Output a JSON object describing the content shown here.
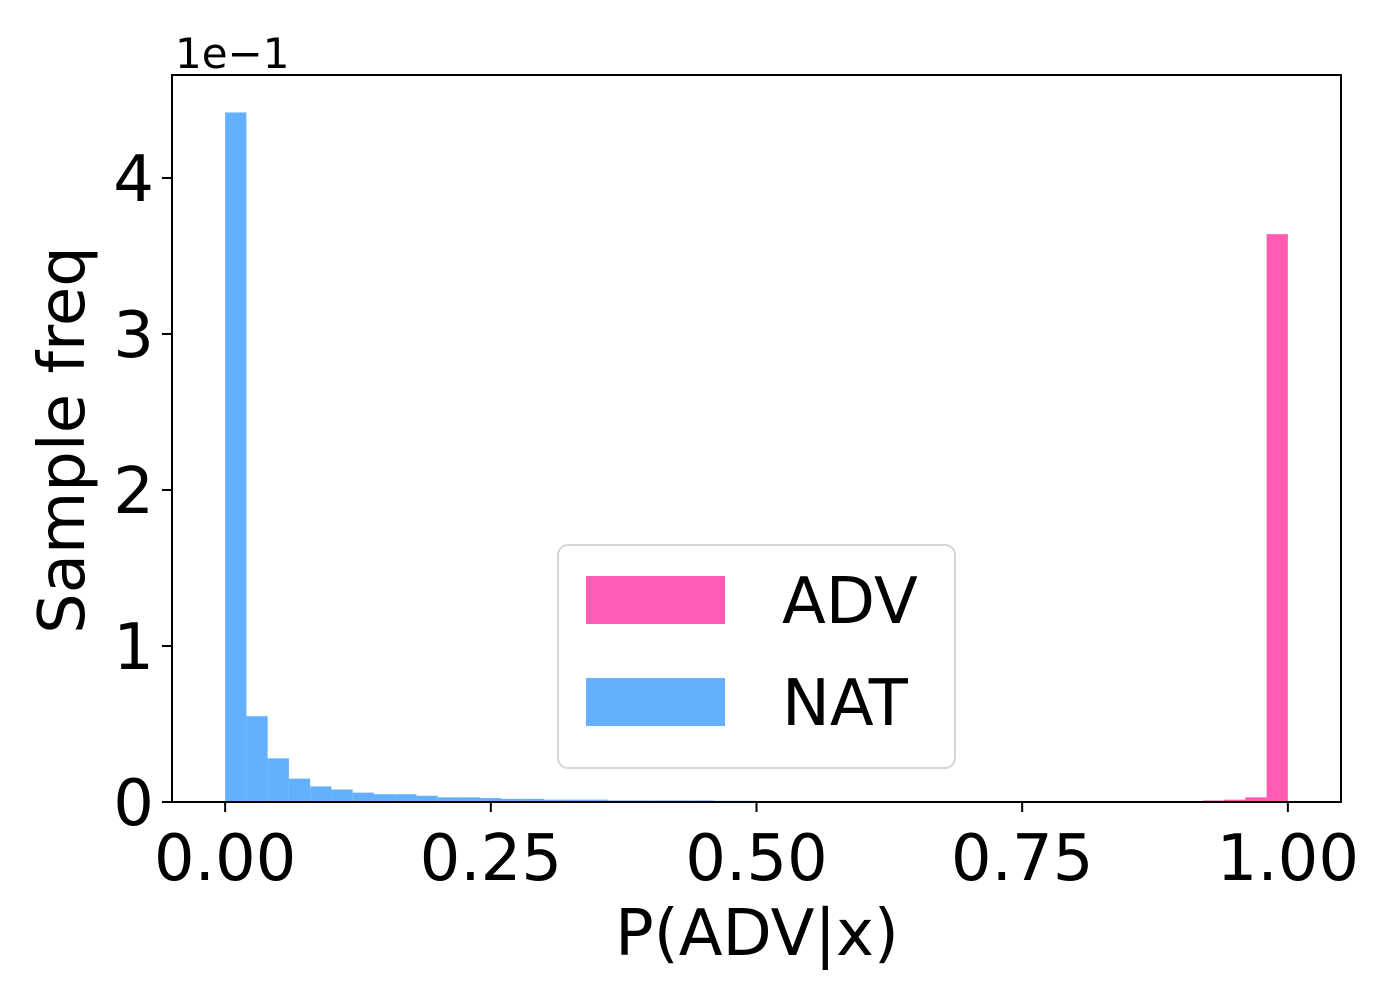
{
  "chart_data": {
    "type": "histogram",
    "xlabel": "P(ADV|x)",
    "ylabel": "Sample freq",
    "y_offset_label": "1e−1",
    "bins": [
      0,
      0.02,
      0.04,
      0.06,
      0.08,
      0.1,
      0.12,
      0.14,
      0.16,
      0.18,
      0.2,
      0.22,
      0.24,
      0.26,
      0.28,
      0.3,
      0.32,
      0.34,
      0.36,
      0.38,
      0.4,
      0.42,
      0.44,
      0.46,
      0.48,
      0.5,
      0.52,
      0.54,
      0.56,
      0.58,
      0.6,
      0.62,
      0.64,
      0.66,
      0.68,
      0.7,
      0.72,
      0.74,
      0.76,
      0.78,
      0.8,
      0.82,
      0.84,
      0.86,
      0.88,
      0.9,
      0.92,
      0.94,
      0.96,
      0.98,
      1.0
    ],
    "series": [
      {
        "name": "ADV",
        "color": "#ff5cb4",
        "values": [
          0,
          0,
          0,
          0,
          0,
          0,
          0,
          0,
          0,
          0,
          0,
          0,
          0,
          0,
          0,
          0,
          0,
          0,
          0,
          0,
          0,
          0,
          0,
          0,
          0,
          0,
          0,
          0,
          0,
          0,
          0,
          0,
          0,
          0,
          0,
          0,
          0,
          0,
          0,
          0,
          0,
          0,
          0,
          0,
          0,
          0.005,
          0.01,
          0.015,
          0.03,
          3.64
        ]
      },
      {
        "name": "NAT",
        "color": "#63b1fc",
        "values": [
          4.42,
          0.55,
          0.28,
          0.15,
          0.1,
          0.08,
          0.06,
          0.05,
          0.05,
          0.04,
          0.03,
          0.03,
          0.025,
          0.02,
          0.02,
          0.015,
          0.015,
          0.015,
          0.01,
          0.01,
          0.01,
          0.01,
          0.01,
          0.008,
          0.008,
          0.006,
          0.005,
          0.004,
          0.003,
          0.002,
          0,
          0,
          0,
          0,
          0,
          0,
          0,
          0,
          0,
          0,
          0,
          0,
          0,
          0,
          0,
          0,
          0,
          0,
          0,
          0
        ]
      }
    ],
    "xlim": [
      -0.05,
      1.05
    ],
    "ylim": [
      0,
      4.66
    ],
    "xticks": [
      {
        "value": 0,
        "label": "0.00"
      },
      {
        "value": 0.25,
        "label": "0.25"
      },
      {
        "value": 0.5,
        "label": "0.50"
      },
      {
        "value": 0.75,
        "label": "0.75"
      },
      {
        "value": 1,
        "label": "1.00"
      }
    ],
    "yticks": [
      0,
      1,
      2,
      3,
      4
    ],
    "legend": "lower center"
  }
}
